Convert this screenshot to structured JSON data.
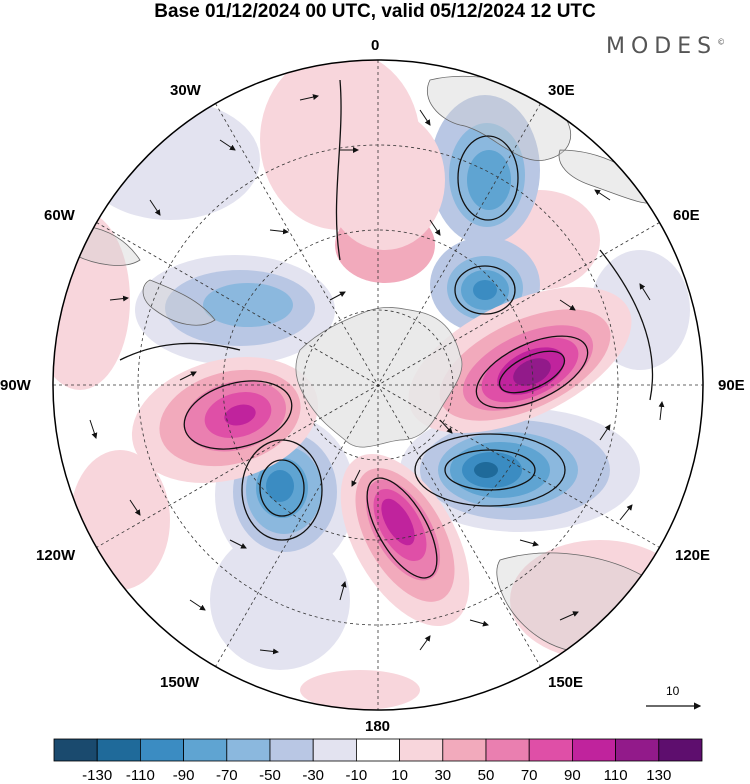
{
  "header": {
    "title": "Base 01/12/2024 00 UTC, valid 05/12/2024 12 UTC",
    "logo_text": "MODES",
    "logo_mark": "©"
  },
  "map": {
    "projection": "south-polar-stereographic",
    "longitude_labels": [
      "0",
      "30E",
      "60E",
      "90E",
      "120E",
      "150E",
      "180",
      "150W",
      "120W",
      "90W",
      "60W",
      "30W"
    ],
    "vector_scale_label": "10",
    "colors": {
      "land": "#e6e6e6",
      "coast": "#666666",
      "grid": "#333333"
    }
  },
  "colorbar": {
    "labels": [
      "-130",
      "-110",
      "-90",
      "-70",
      "-50",
      "-30",
      "-10",
      "10",
      "30",
      "50",
      "70",
      "90",
      "110",
      "130"
    ],
    "colors": [
      "#1a4a6e",
      "#1f6a9a",
      "#3b8cc2",
      "#5fa4d2",
      "#8bb8de",
      "#b9c7e4",
      "#e3e3f0",
      "#ffffff",
      "#f8d6dc",
      "#f2aabc",
      "#ea7fb0",
      "#df4fa7",
      "#c0239d",
      "#921a8a",
      "#5e0e6e"
    ]
  }
}
